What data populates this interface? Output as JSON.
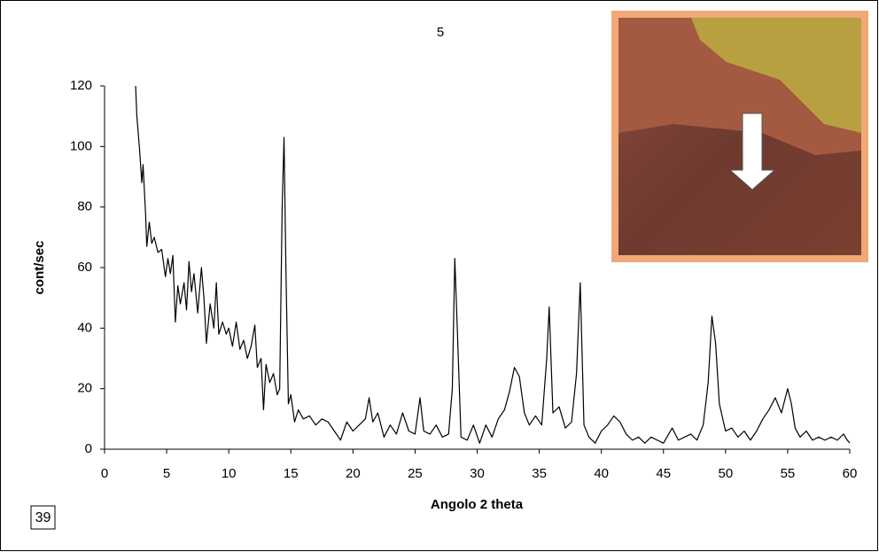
{
  "chart_data": {
    "type": "line",
    "title": "5",
    "x_label": "Angolo 2 theta",
    "y_label": "cont/sec",
    "annotation": "39",
    "color": "#000000",
    "xlim": [
      0,
      60
    ],
    "xticks": [
      0,
      5,
      10,
      15,
      20,
      25,
      30,
      35,
      40,
      45,
      50,
      55,
      60
    ],
    "ylim": [
      0,
      120
    ],
    "yticks": [
      0,
      20,
      40,
      60,
      80,
      100,
      120
    ],
    "x": [
      2.5,
      2.6,
      2.8,
      3.0,
      3.1,
      3.3,
      3.4,
      3.6,
      3.8,
      4.0,
      4.3,
      4.6,
      4.9,
      5.1,
      5.3,
      5.5,
      5.7,
      5.9,
      6.1,
      6.4,
      6.6,
      6.8,
      7.0,
      7.2,
      7.5,
      7.8,
      8.0,
      8.2,
      8.5,
      8.8,
      9.0,
      9.2,
      9.5,
      9.8,
      10.0,
      10.3,
      10.6,
      10.9,
      11.2,
      11.5,
      11.8,
      12.1,
      12.3,
      12.6,
      12.8,
      13.0,
      13.3,
      13.6,
      13.9,
      14.1,
      14.3,
      14.45,
      14.6,
      14.8,
      15.0,
      15.3,
      15.6,
      16.0,
      16.5,
      17.0,
      17.5,
      18.0,
      18.5,
      19.0,
      19.5,
      20.0,
      20.5,
      21.0,
      21.3,
      21.6,
      22.0,
      22.5,
      23.0,
      23.5,
      24.0,
      24.5,
      25.0,
      25.4,
      25.7,
      26.2,
      26.7,
      27.2,
      27.7,
      28.0,
      28.2,
      28.4,
      28.7,
      29.2,
      29.7,
      30.2,
      30.7,
      31.2,
      31.7,
      32.2,
      32.6,
      33.0,
      33.4,
      33.8,
      34.2,
      34.7,
      35.2,
      35.6,
      35.8,
      36.1,
      36.6,
      37.1,
      37.6,
      38.0,
      38.3,
      38.6,
      39.0,
      39.5,
      40.0,
      40.5,
      41.0,
      41.5,
      42.0,
      42.5,
      43.0,
      43.5,
      44.0,
      44.5,
      45.0,
      45.7,
      46.2,
      46.7,
      47.2,
      47.7,
      48.2,
      48.6,
      48.9,
      49.2,
      49.5,
      50.0,
      50.5,
      51.0,
      51.5,
      52.0,
      52.5,
      53.0,
      53.5,
      54.0,
      54.5,
      55.0,
      55.3,
      55.6,
      56.0,
      56.5,
      57.0,
      57.5,
      58.0,
      58.5,
      59.0,
      59.5,
      59.8,
      60
    ],
    "values": [
      120,
      110,
      100,
      88,
      94,
      78,
      67,
      75,
      68,
      70,
      65,
      66,
      57,
      63,
      58,
      64,
      42,
      54,
      48,
      55,
      46,
      62,
      52,
      58,
      45,
      60,
      50,
      35,
      48,
      40,
      55,
      38,
      42,
      38,
      40,
      34,
      42,
      33,
      36,
      30,
      34,
      41,
      27,
      30,
      13,
      28,
      22,
      25,
      18,
      20,
      80,
      103,
      60,
      15,
      18,
      9,
      13,
      10,
      11,
      8,
      10,
      9,
      6,
      3,
      9,
      6,
      8,
      10,
      17,
      9,
      12,
      4,
      8,
      5,
      12,
      6,
      5,
      17,
      6,
      5,
      8,
      4,
      5,
      20,
      63,
      40,
      4,
      3,
      8,
      2,
      8,
      4,
      10,
      13,
      19,
      27,
      24,
      12,
      8,
      11,
      8,
      30,
      47,
      12,
      14,
      7,
      9,
      25,
      55,
      8,
      4,
      2,
      6,
      8,
      11,
      9,
      5,
      3,
      4,
      2,
      4,
      3,
      2,
      7,
      3,
      4,
      5,
      3,
      8,
      22,
      44,
      35,
      15,
      6,
      7,
      4,
      6,
      3,
      6,
      10,
      13,
      17,
      12,
      20,
      15,
      7,
      4,
      6,
      3,
      4,
      3,
      4,
      3,
      5,
      3,
      2
    ]
  }
}
